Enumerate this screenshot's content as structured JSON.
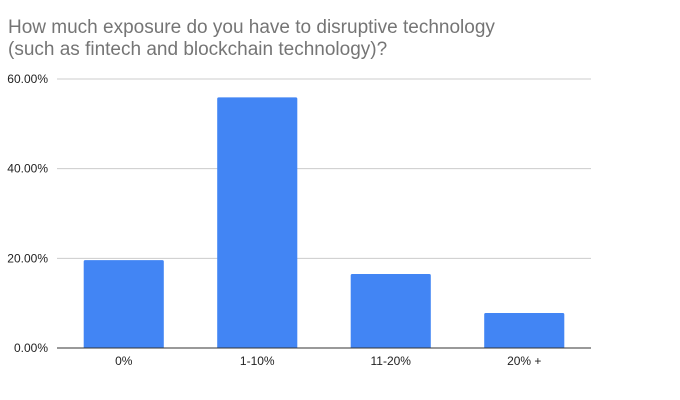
{
  "chart_data": {
    "type": "bar",
    "title_lines": [
      "How much exposure do you have to disruptive technology",
      "(such as fintech and blockchain technology)?"
    ],
    "xlabel": "",
    "ylabel": "",
    "categories": [
      "0%",
      "1-10%",
      "11-20%",
      "20% +"
    ],
    "values": [
      19.6,
      55.9,
      16.5,
      7.8
    ],
    "ylim": [
      0,
      60
    ],
    "yticks": [
      0,
      20,
      40,
      60
    ],
    "ytick_labels": [
      "0.00%",
      "20.00%",
      "40.00%",
      "60.00%"
    ],
    "grid": true,
    "legend": "none",
    "bar_color": "#4285f4",
    "gridline_color": "#cccccc",
    "axis_color": "#333333"
  }
}
